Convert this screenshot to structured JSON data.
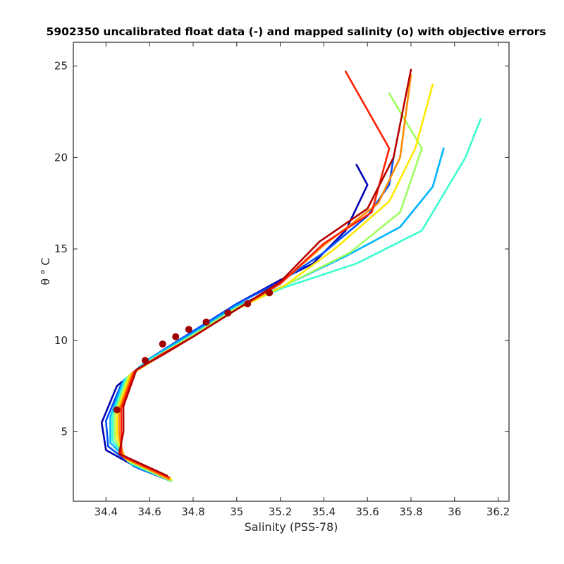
{
  "chart_data": {
    "type": "line",
    "title": "5902350 uncalibrated float data (-) and mapped salinity (o) with objective errors",
    "xlabel": "Salinity (PSS-78)",
    "ylabel": "θ ° C",
    "xlim": [
      34.25,
      36.25
    ],
    "ylim": [
      1.2,
      26.3
    ],
    "xticks": [
      34.4,
      34.6,
      34.8,
      35,
      35.2,
      35.4,
      35.6,
      35.8,
      36,
      36.2
    ],
    "xtick_labels": [
      "34.4",
      "34.6",
      "34.8",
      "35",
      "35.2",
      "35.4",
      "35.6",
      "35.8",
      "36",
      "36.2"
    ],
    "yticks": [
      5,
      10,
      15,
      20,
      25
    ],
    "ytick_labels": [
      "5",
      "10",
      "15",
      "20",
      "25"
    ],
    "grid": false,
    "colormap": "jet (profile index, blue = early, red = late)",
    "n_profiles": 9,
    "profile_colors": [
      "#0000b4",
      "#0050ff",
      "#00b4ff",
      "#3cffd0",
      "#a0ff60",
      "#ffe800",
      "#ff8c00",
      "#ff2000",
      "#b40000"
    ],
    "profiles": [
      {
        "s": [
          34.7,
          34.55,
          34.4,
          34.38,
          34.45,
          34.6,
          34.8,
          35.0,
          35.2,
          35.35,
          35.5,
          35.6,
          35.55
        ],
        "t": [
          2.3,
          3.0,
          4.0,
          5.5,
          7.5,
          9.0,
          10.5,
          12.0,
          13.3,
          14.2,
          16.0,
          18.5,
          19.6
        ]
      },
      {
        "s": [
          34.7,
          34.53,
          34.41,
          34.4,
          34.47,
          34.6,
          34.8,
          35.0,
          35.2,
          35.4,
          35.6,
          35.7,
          35.72
        ],
        "t": [
          2.3,
          3.1,
          4.2,
          5.6,
          7.6,
          9.0,
          10.5,
          12.0,
          13.2,
          14.8,
          16.8,
          18.5,
          20.0
        ]
      },
      {
        "s": [
          34.7,
          34.52,
          34.42,
          34.42,
          34.48,
          34.6,
          34.8,
          35.0,
          35.22,
          35.5,
          35.75,
          35.9,
          35.95
        ],
        "t": [
          2.3,
          3.2,
          4.4,
          5.8,
          7.8,
          9.0,
          10.4,
          11.9,
          13.0,
          14.6,
          16.2,
          18.4,
          20.5
        ]
      },
      {
        "s": [
          34.7,
          34.51,
          34.43,
          34.43,
          34.49,
          34.61,
          34.8,
          35.0,
          35.22,
          35.55,
          35.85,
          36.05,
          36.12
        ],
        "t": [
          2.3,
          3.3,
          4.5,
          5.9,
          7.9,
          9.0,
          10.3,
          11.8,
          12.9,
          14.2,
          16.0,
          20.0,
          22.1
        ]
      },
      {
        "s": [
          34.7,
          34.5,
          34.44,
          34.44,
          34.5,
          34.62,
          34.8,
          35.0,
          35.22,
          35.52,
          35.75,
          35.85,
          35.7
        ],
        "t": [
          2.3,
          3.4,
          4.6,
          6.0,
          8.0,
          9.0,
          10.3,
          11.8,
          13.0,
          14.8,
          17.0,
          20.5,
          23.5
        ]
      },
      {
        "s": [
          34.7,
          34.49,
          34.45,
          34.45,
          34.51,
          34.63,
          34.8,
          35.0,
          35.22,
          35.45,
          35.7,
          35.82,
          35.9
        ],
        "t": [
          2.4,
          3.5,
          4.7,
          6.1,
          8.1,
          9.0,
          10.2,
          11.7,
          13.0,
          15.0,
          17.6,
          20.5,
          24.0
        ]
      },
      {
        "s": [
          34.69,
          34.48,
          34.46,
          34.46,
          34.52,
          34.64,
          34.8,
          35.0,
          35.2,
          35.4,
          35.65,
          35.75,
          35.8
        ],
        "t": [
          2.4,
          3.6,
          4.8,
          6.2,
          8.2,
          9.1,
          10.2,
          11.7,
          13.1,
          15.2,
          17.5,
          20.0,
          24.5
        ]
      },
      {
        "s": [
          34.69,
          34.47,
          34.47,
          34.47,
          34.53,
          34.65,
          34.8,
          35.0,
          35.2,
          35.4,
          35.62,
          35.7,
          35.5
        ],
        "t": [
          2.5,
          3.7,
          4.9,
          6.3,
          8.3,
          9.2,
          10.2,
          11.7,
          13.1,
          15.3,
          17.0,
          20.5,
          24.7
        ]
      },
      {
        "s": [
          34.68,
          34.46,
          34.48,
          34.48,
          34.54,
          34.66,
          34.8,
          35.0,
          35.2,
          35.38,
          35.6,
          35.72,
          35.8
        ],
        "t": [
          2.6,
          3.8,
          5.0,
          6.4,
          8.4,
          9.2,
          10.2,
          11.7,
          13.2,
          15.4,
          17.2,
          20.0,
          24.8
        ]
      }
    ],
    "mapped_salinity_points": {
      "marker": "o",
      "color": "#a00000",
      "s": [
        34.45,
        34.58,
        34.66,
        34.72,
        34.78,
        34.86,
        34.96,
        35.05,
        35.15
      ],
      "t": [
        6.2,
        8.9,
        9.8,
        10.2,
        10.6,
        11.0,
        11.5,
        12.0,
        12.6
      ]
    }
  }
}
